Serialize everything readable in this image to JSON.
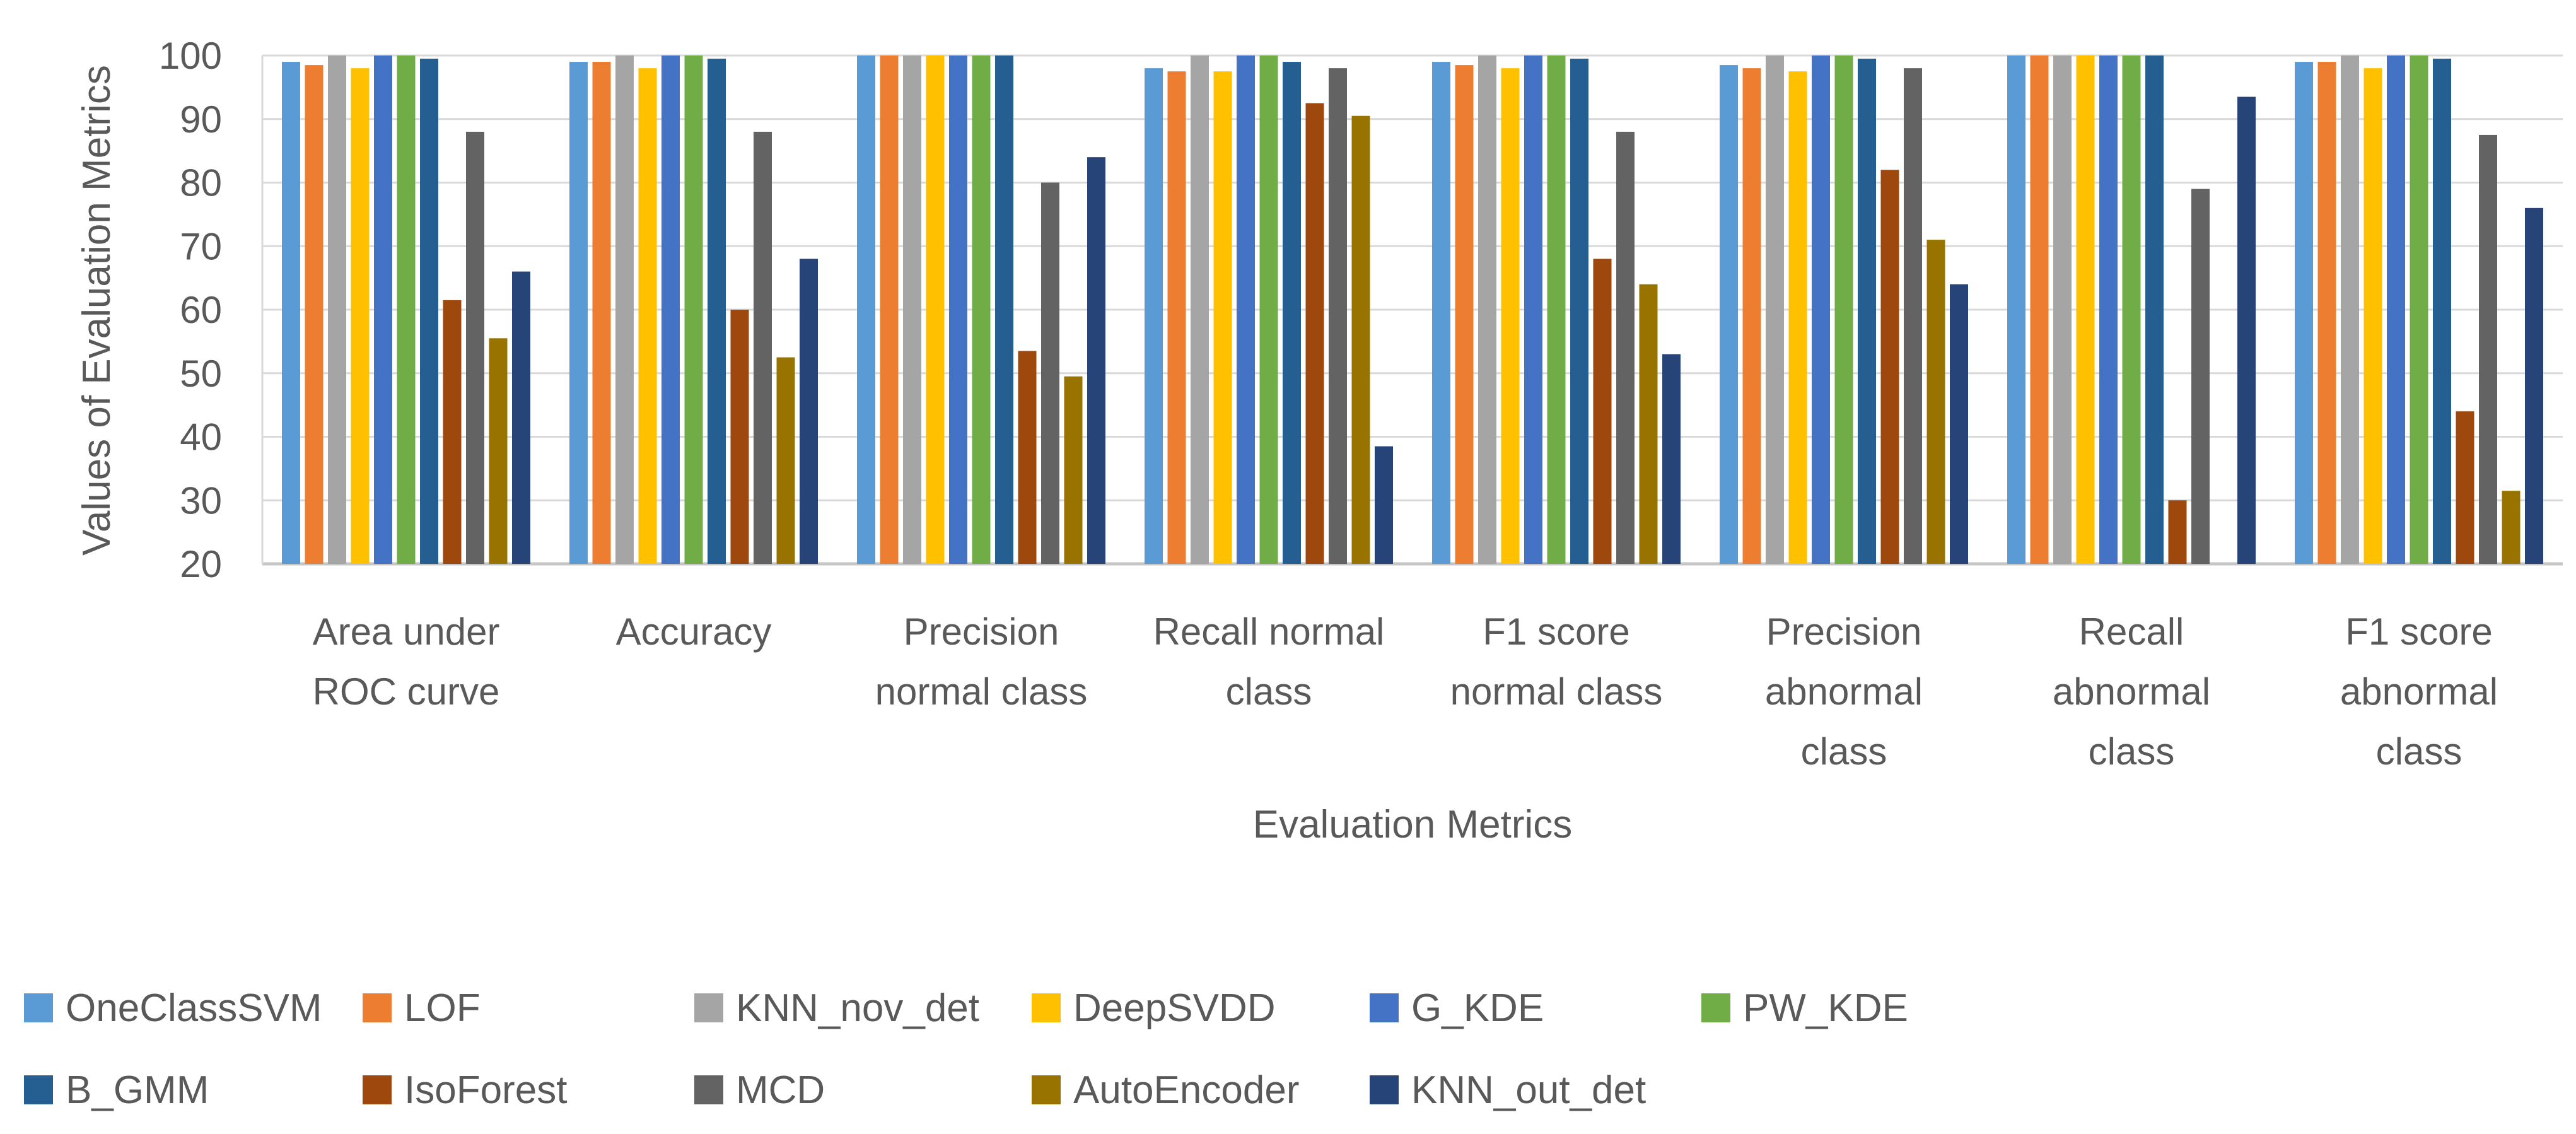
{
  "colors": {
    "text": "#595959",
    "gridline": "#D9D9D9",
    "axis_line": "#C6C6C6",
    "background": "#FFFFFF"
  },
  "chart_data": {
    "type": "bar",
    "title": "",
    "xlabel": "Evaluation Metrics",
    "ylabel": "Values of Evaluation Metrics",
    "ylim": [
      20,
      100
    ],
    "ytick_step": 10,
    "yticks": [
      100,
      90,
      80,
      70,
      60,
      50,
      40,
      30,
      20
    ],
    "grid": true,
    "legend_position": "bottom",
    "categories": [
      "Area under ROC curve",
      "Accuracy",
      "Precision normal class",
      "Recall normal class",
      "F1 score normal class",
      "Precision abnormal class",
      "Recall abnormal class",
      "F1 score abnormal class"
    ],
    "category_lines": [
      [
        "Area under",
        "ROC curve"
      ],
      [
        "Accuracy"
      ],
      [
        "Precision",
        "normal class"
      ],
      [
        "Recall normal",
        "class"
      ],
      [
        "F1 score",
        "normal class"
      ],
      [
        "Precision",
        "abnormal",
        "class"
      ],
      [
        "Recall",
        "abnormal",
        "class"
      ],
      [
        "F1 score",
        "abnormal",
        "class"
      ]
    ],
    "series": [
      {
        "name": "OneClassSVM",
        "color": "#5B9BD5",
        "values": [
          99,
          99,
          100,
          98,
          99,
          98.5,
          100,
          99
        ]
      },
      {
        "name": "LOF",
        "color": "#ED7D31",
        "values": [
          98.5,
          99,
          100,
          97.5,
          98.5,
          98,
          100,
          99
        ]
      },
      {
        "name": "KNN_nov_det",
        "color": "#A5A5A5",
        "values": [
          100,
          100,
          100,
          100,
          100,
          100,
          100,
          100
        ]
      },
      {
        "name": "DeepSVDD",
        "color": "#FFC000",
        "values": [
          98,
          98,
          100,
          97.5,
          98,
          97.5,
          100,
          98
        ]
      },
      {
        "name": "G_KDE",
        "color": "#4472C4",
        "values": [
          100,
          100,
          100,
          100,
          100,
          100,
          100,
          100
        ]
      },
      {
        "name": "PW_KDE",
        "color": "#70AD47",
        "values": [
          100,
          100,
          100,
          100,
          100,
          100,
          100,
          100
        ]
      },
      {
        "name": "B_GMM",
        "color": "#255E91",
        "values": [
          99.5,
          99.5,
          100,
          99,
          99.5,
          99.5,
          100,
          99.5
        ]
      },
      {
        "name": "IsoForest",
        "color": "#9E480E",
        "values": [
          61.5,
          60,
          53.5,
          92.5,
          68,
          82,
          30,
          44
        ]
      },
      {
        "name": "MCD",
        "color": "#636363",
        "values": [
          88,
          88,
          80,
          98,
          88,
          98,
          79,
          87.5
        ]
      },
      {
        "name": "AutoEncoder",
        "color": "#997300",
        "values": [
          55.5,
          52.5,
          49.5,
          90.5,
          64,
          71,
          null,
          31.5
        ]
      },
      {
        "name": "KNN_out_det",
        "color": "#264478",
        "values": [
          66,
          68,
          84,
          38.5,
          53,
          64,
          93.5,
          76
        ]
      }
    ],
    "legend_rows": [
      [
        "OneClassSVM",
        "LOF",
        "KNN_nov_det",
        "DeepSVDD",
        "G_KDE",
        "PW_KDE"
      ],
      [
        "B_GMM",
        "IsoForest",
        "MCD",
        "AutoEncoder",
        "KNN_out_det"
      ]
    ]
  }
}
